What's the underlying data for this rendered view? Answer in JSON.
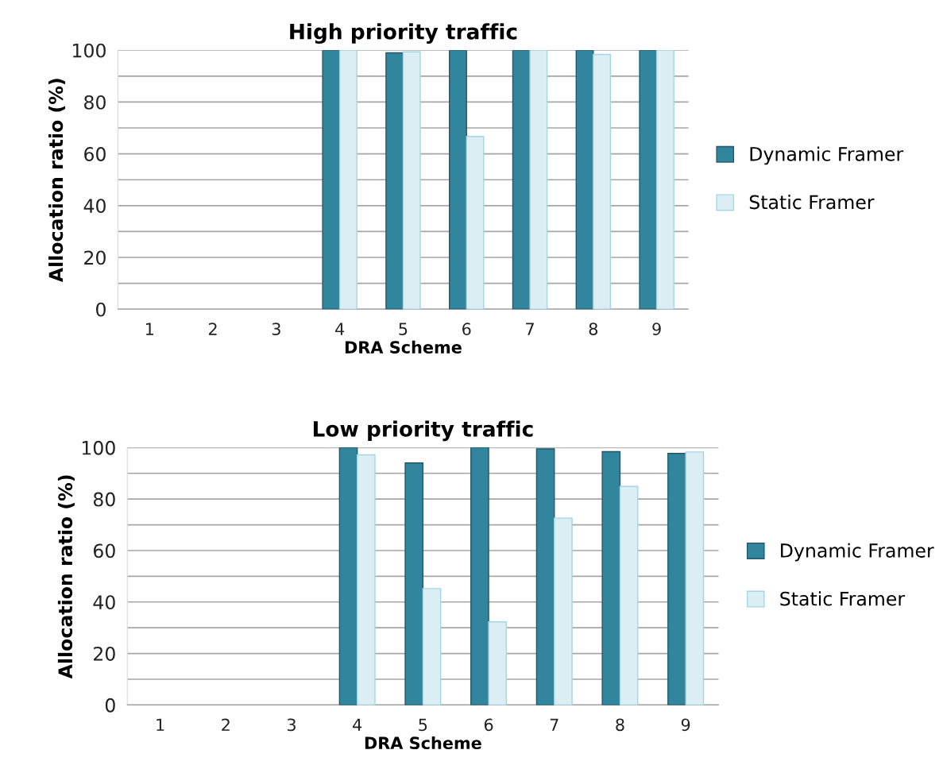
{
  "chart_data": [
    {
      "type": "bar",
      "title": "High priority traffic",
      "xlabel": "DRA Scheme",
      "ylabel": "Allocation ratio (%)",
      "categories": [
        "1",
        "2",
        "3",
        "4",
        "5",
        "6",
        "7",
        "8",
        "9"
      ],
      "series": [
        {
          "name": "Dynamic Framer",
          "color": "#31859c",
          "values": [
            null,
            null,
            null,
            100,
            99,
            100,
            100,
            100,
            100
          ]
        },
        {
          "name": "Static Framer",
          "color": "#daeef3",
          "values": [
            null,
            null,
            null,
            100,
            99.4,
            66.7,
            100,
            98.4,
            100
          ]
        }
      ],
      "ylim": [
        0,
        100
      ],
      "yticks": [
        0,
        {
          "value": 10,
          "label": null
        },
        20,
        {
          "value": 30,
          "label": null
        },
        40,
        {
          "value": 50,
          "label": null
        },
        60,
        {
          "value": 70,
          "label": null
        },
        80,
        {
          "value": 90,
          "label": null
        },
        100
      ],
      "grid": "y",
      "legend": "right"
    },
    {
      "type": "bar",
      "title": "Low priority traffic",
      "xlabel": "DRA Scheme",
      "ylabel": "Allocation ratio (%)",
      "categories": [
        "1",
        "2",
        "3",
        "4",
        "5",
        "6",
        "7",
        "8",
        "9"
      ],
      "series": [
        {
          "name": "Dynamic Framer",
          "color": "#31859c",
          "values": [
            null,
            null,
            null,
            100,
            94.0,
            100,
            99.5,
            98.4,
            97.7
          ]
        },
        {
          "name": "Static Framer",
          "color": "#daeef3",
          "values": [
            null,
            null,
            null,
            97.2,
            45.2,
            32.3,
            72.6,
            84.9,
            98.3
          ]
        }
      ],
      "ylim": [
        0,
        100
      ],
      "yticks": [
        0,
        {
          "value": 10,
          "label": null
        },
        20,
        {
          "value": 30,
          "label": null
        },
        40,
        {
          "value": 50,
          "label": null
        },
        60,
        {
          "value": 70,
          "label": null
        },
        80,
        {
          "value": 90,
          "label": null
        },
        100
      ],
      "grid": "y",
      "legend": "right"
    }
  ]
}
